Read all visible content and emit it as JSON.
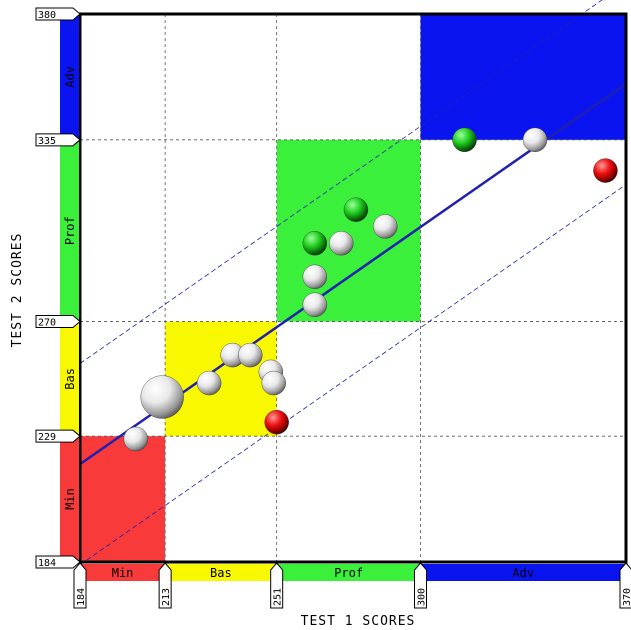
{
  "chart_data": {
    "type": "scatter",
    "xlabel": "TEST 1 SCORES",
    "ylabel": "TEST 2 SCORES",
    "xlim": [
      184,
      370
    ],
    "ylim": [
      184,
      380
    ],
    "x_ticks": [
      184,
      213,
      251,
      300,
      370
    ],
    "x_tick_labels": [
      "184",
      "213",
      "251",
      "300",
      "370"
    ],
    "y_ticks": [
      184,
      229,
      270,
      335,
      380
    ],
    "y_tick_labels": [
      "184",
      "229",
      "270",
      "335",
      "380"
    ],
    "grid": true,
    "x_bands": [
      {
        "label": "Min",
        "from": 184,
        "to": 213,
        "color": "#f83a3a"
      },
      {
        "label": "Bas",
        "from": 213,
        "to": 251,
        "color": "#f8f800"
      },
      {
        "label": "Prof",
        "from": 251,
        "to": 300,
        "color": "#3af03a"
      },
      {
        "label": "Adv",
        "from": 300,
        "to": 370,
        "color": "#0a14f0"
      }
    ],
    "y_bands": [
      {
        "label": "Min",
        "from": 184,
        "to": 229,
        "color": "#f83a3a"
      },
      {
        "label": "Bas",
        "from": 229,
        "to": 270,
        "color": "#f8f800"
      },
      {
        "label": "Prof",
        "from": 270,
        "to": 335,
        "color": "#3af03a"
      },
      {
        "label": "Adv",
        "from": 335,
        "to": 380,
        "color": "#0a14f0"
      }
    ],
    "regions": [
      {
        "x": [
          184,
          213
        ],
        "y": [
          184,
          229
        ],
        "color": "#f83a3a"
      },
      {
        "x": [
          213,
          251
        ],
        "y": [
          229,
          270
        ],
        "color": "#f8f800"
      },
      {
        "x": [
          251,
          300
        ],
        "y": [
          270,
          335
        ],
        "color": "#3af03a"
      },
      {
        "x": [
          300,
          370
        ],
        "y": [
          335,
          380
        ],
        "color": "#0a14f0"
      }
    ],
    "regression": {
      "x": [
        184,
        370
      ],
      "y": [
        219,
        355
      ],
      "color": "#2020b0"
    },
    "confidence_band": {
      "offset": 36,
      "color": "#2020b0"
    },
    "points": [
      {
        "x": 203,
        "y": 228,
        "size": 1,
        "color": "white"
      },
      {
        "x": 212,
        "y": 243,
        "size": 3.2,
        "color": "white"
      },
      {
        "x": 228,
        "y": 248,
        "size": 1,
        "color": "white"
      },
      {
        "x": 236,
        "y": 258,
        "size": 1,
        "color": "white"
      },
      {
        "x": 242,
        "y": 258,
        "size": 1,
        "color": "white"
      },
      {
        "x": 249,
        "y": 252,
        "size": 1,
        "color": "white"
      },
      {
        "x": 250,
        "y": 248,
        "size": 1,
        "color": "white"
      },
      {
        "x": 251,
        "y": 234,
        "size": 1,
        "color": "red"
      },
      {
        "x": 264,
        "y": 298,
        "size": 1,
        "color": "green"
      },
      {
        "x": 264,
        "y": 286,
        "size": 1,
        "color": "white"
      },
      {
        "x": 264,
        "y": 276,
        "size": 1,
        "color": "white"
      },
      {
        "x": 273,
        "y": 298,
        "size": 1,
        "color": "white"
      },
      {
        "x": 278,
        "y": 310,
        "size": 1,
        "color": "green"
      },
      {
        "x": 288,
        "y": 304,
        "size": 1,
        "color": "white"
      },
      {
        "x": 315,
        "y": 335,
        "size": 1,
        "color": "green"
      },
      {
        "x": 339,
        "y": 335,
        "size": 1,
        "color": "white"
      },
      {
        "x": 363,
        "y": 324,
        "size": 1,
        "color": "red"
      }
    ]
  }
}
